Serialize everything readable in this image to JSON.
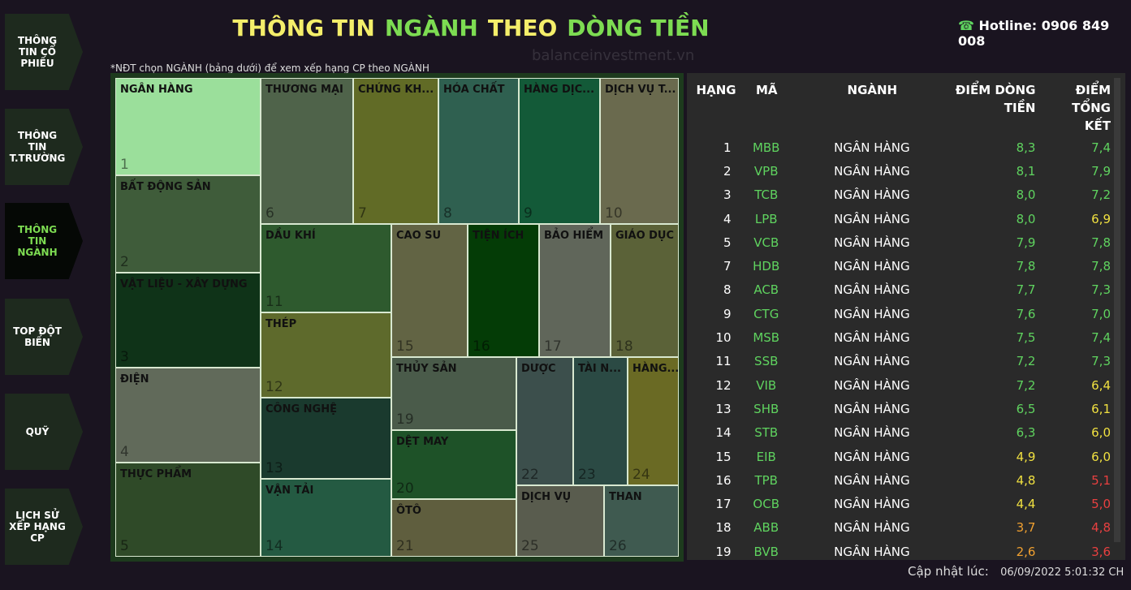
{
  "sidebar": [
    "THÔNG TIN CỔ PHIẾU",
    "THÔNG TIN T.TRƯỜNG",
    "THÔNG TIN NGÀNH",
    "TOP ĐỘT BIẾN",
    "QUỸ",
    "LỊCH SỬ XẾP HẠNG CP"
  ],
  "sidebar_active": 2,
  "header": {
    "title": [
      {
        "text": "THÔNG TIN",
        "color": "#f4ee6a"
      },
      {
        "text": "NGÀNH",
        "color": "#7ddc52"
      },
      {
        "text": "THEO",
        "color": "#f4ee6a"
      },
      {
        "text": "DÒNG TIỀN",
        "color": "#7ddc52"
      }
    ],
    "hotline": "Hotline: 0906 849 008",
    "watermark": "balanceinvestment.vn"
  },
  "note": "*NĐT chọn NGÀNH (bảng dưới) để xem xếp hạng CP theo NGÀNH",
  "treemap": [
    {
      "label": "NGÂN HÀNG",
      "rank": "1",
      "color": "#9bdf9b"
    },
    {
      "label": "BẤT ĐỘNG SẢN",
      "rank": "2",
      "color": "#3f5c3a"
    },
    {
      "label": "VẬT LIỆU - XÂY DỰNG",
      "rank": "3",
      "color": "#0f3318"
    },
    {
      "label": "ĐIỆN",
      "rank": "4",
      "color": "#616a5a"
    },
    {
      "label": "THỰC PHẨM",
      "rank": "5",
      "color": "#2f4a28"
    },
    {
      "label": "THƯƠNG MẠI",
      "rank": "6",
      "color": "#4f634a"
    },
    {
      "label": "CHỨNG KH...",
      "rank": "7",
      "color": "#616b26"
    },
    {
      "label": "HÓA CHẤT",
      "rank": "8",
      "color": "#2f6050"
    },
    {
      "label": "HÀNG DỊC...",
      "rank": "9",
      "color": "#135a38"
    },
    {
      "label": "DỊCH VỤ T...",
      "rank": "10",
      "color": "#6a6a4e"
    },
    {
      "label": "DẦU KHÍ",
      "rank": "11",
      "color": "#2e5a2e"
    },
    {
      "label": "THÉP",
      "rank": "12",
      "color": "#5e6a2c"
    },
    {
      "label": "CÔNG NGHỆ",
      "rank": "13",
      "color": "#1a3a2e"
    },
    {
      "label": "VẬN TẢI",
      "rank": "14",
      "color": "#245a42"
    },
    {
      "label": "CAO SU",
      "rank": "15",
      "color": "#626444"
    },
    {
      "label": "TIỆN ÍCH",
      "rank": "16",
      "color": "#043c06"
    },
    {
      "label": "BẢO HIỂM",
      "rank": "17",
      "color": "#60665a"
    },
    {
      "label": "GIÁO DỤC",
      "rank": "18",
      "color": "#5b6238"
    },
    {
      "label": "THỦY SẢN",
      "rank": "19",
      "color": "#4a5b4a"
    },
    {
      "label": "DỆT MAY",
      "rank": "20",
      "color": "#1e5228"
    },
    {
      "label": "ÔTÔ",
      "rank": "21",
      "color": "#5f5e3e"
    },
    {
      "label": "DƯỢC",
      "rank": "22",
      "color": "#3c4f4c"
    },
    {
      "label": "TÀI N...",
      "rank": "23",
      "color": "#2b4a44"
    },
    {
      "label": "HÀNG...",
      "rank": "24",
      "color": "#6a6a24"
    },
    {
      "label": "DỊCH VỤ",
      "rank": "25",
      "color": "#595c4e"
    },
    {
      "label": "THAN",
      "rank": "26",
      "color": "#3f5a50"
    }
  ],
  "table": {
    "columns": [
      "HẠNG",
      "MÃ",
      "NGÀNH",
      "ĐIỂM DÒNG TIỀN",
      "ĐIỂM TỔNG KẾT"
    ],
    "rows": [
      {
        "rank": "1",
        "code": "MBB",
        "industry": "NGÂN HÀNG",
        "flow": "8,3",
        "total": "7,4",
        "flow_color": "#5fd35f",
        "total_color": "#5fd35f"
      },
      {
        "rank": "2",
        "code": "VPB",
        "industry": "NGÂN HÀNG",
        "flow": "8,1",
        "total": "7,9",
        "flow_color": "#5fd35f",
        "total_color": "#5fd35f"
      },
      {
        "rank": "3",
        "code": "TCB",
        "industry": "NGÂN HÀNG",
        "flow": "8,0",
        "total": "7,2",
        "flow_color": "#5fd35f",
        "total_color": "#5fd35f"
      },
      {
        "rank": "4",
        "code": "LPB",
        "industry": "NGÂN HÀNG",
        "flow": "8,0",
        "total": "6,9",
        "flow_color": "#5fd35f",
        "total_color": "#f0e040"
      },
      {
        "rank": "5",
        "code": "VCB",
        "industry": "NGÂN HÀNG",
        "flow": "7,9",
        "total": "7,8",
        "flow_color": "#5fd35f",
        "total_color": "#5fd35f"
      },
      {
        "rank": "7",
        "code": "HDB",
        "industry": "NGÂN HÀNG",
        "flow": "7,8",
        "total": "7,8",
        "flow_color": "#5fd35f",
        "total_color": "#5fd35f"
      },
      {
        "rank": "8",
        "code": "ACB",
        "industry": "NGÂN HÀNG",
        "flow": "7,7",
        "total": "7,3",
        "flow_color": "#5fd35f",
        "total_color": "#5fd35f"
      },
      {
        "rank": "9",
        "code": "CTG",
        "industry": "NGÂN HÀNG",
        "flow": "7,6",
        "total": "7,0",
        "flow_color": "#5fd35f",
        "total_color": "#5fd35f"
      },
      {
        "rank": "10",
        "code": "MSB",
        "industry": "NGÂN HÀNG",
        "flow": "7,5",
        "total": "7,4",
        "flow_color": "#5fd35f",
        "total_color": "#5fd35f"
      },
      {
        "rank": "11",
        "code": "SSB",
        "industry": "NGÂN HÀNG",
        "flow": "7,2",
        "total": "7,3",
        "flow_color": "#5fd35f",
        "total_color": "#5fd35f"
      },
      {
        "rank": "12",
        "code": "VIB",
        "industry": "NGÂN HÀNG",
        "flow": "7,2",
        "total": "6,4",
        "flow_color": "#5fd35f",
        "total_color": "#f0e040"
      },
      {
        "rank": "13",
        "code": "SHB",
        "industry": "NGÂN HÀNG",
        "flow": "6,5",
        "total": "6,1",
        "flow_color": "#5fd35f",
        "total_color": "#f0e040"
      },
      {
        "rank": "14",
        "code": "STB",
        "industry": "NGÂN HÀNG",
        "flow": "6,3",
        "total": "6,0",
        "flow_color": "#5fd35f",
        "total_color": "#f0e040"
      },
      {
        "rank": "15",
        "code": "EIB",
        "industry": "NGÂN HÀNG",
        "flow": "4,9",
        "total": "6,0",
        "flow_color": "#f0e040",
        "total_color": "#f0e040"
      },
      {
        "rank": "16",
        "code": "TPB",
        "industry": "NGÂN HÀNG",
        "flow": "4,8",
        "total": "5,1",
        "flow_color": "#f0e040",
        "total_color": "#e84040"
      },
      {
        "rank": "17",
        "code": "OCB",
        "industry": "NGÂN HÀNG",
        "flow": "4,4",
        "total": "5,0",
        "flow_color": "#f0e040",
        "total_color": "#e84040"
      },
      {
        "rank": "18",
        "code": "ABB",
        "industry": "NGÂN HÀNG",
        "flow": "3,7",
        "total": "4,8",
        "flow_color": "#f0a030",
        "total_color": "#e84040"
      },
      {
        "rank": "19",
        "code": "BVB",
        "industry": "NGÂN HÀNG",
        "flow": "2,6",
        "total": "3,6",
        "flow_color": "#f0a030",
        "total_color": "#e84040"
      }
    ]
  },
  "footer": {
    "label": "Cập nhật lúc:",
    "time": "06/09/2022 5:01:32 CH"
  }
}
